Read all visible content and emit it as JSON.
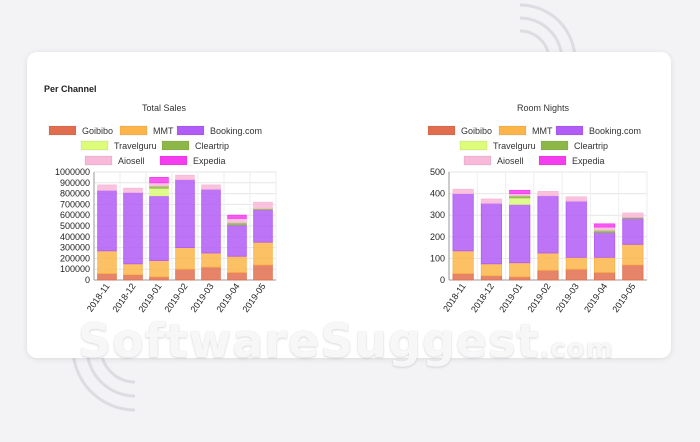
{
  "section": {
    "title": "Per Channel"
  },
  "watermark": {
    "main": "SoftwareSuggest",
    "suffix": ".com"
  },
  "legend": [
    {
      "name": "Goibibo",
      "color": "#e06e4e"
    },
    {
      "name": "MMT",
      "color": "#fbb54a"
    },
    {
      "name": "Booking.com",
      "color": "#b15cf6"
    },
    {
      "name": "Travelguru",
      "color": "#dcfc7a"
    },
    {
      "name": "Cleartrip",
      "color": "#8db848"
    },
    {
      "name": "Aiosell",
      "color": "#f8b8d8"
    },
    {
      "name": "Expedia",
      "color": "#f53df0"
    }
  ],
  "chart_data": [
    {
      "type": "bar",
      "stacked": true,
      "title": "Total Sales",
      "categories": [
        "2018-11",
        "2018-12",
        "2019-01",
        "2019-02",
        "2019-03",
        "2019-04",
        "2019-05"
      ],
      "ylim": [
        0,
        1000000
      ],
      "yticks": [
        0,
        100000,
        200000,
        300000,
        400000,
        500000,
        600000,
        700000,
        800000,
        900000,
        1000000
      ],
      "series": [
        {
          "name": "Goibibo",
          "values": [
            60000,
            50000,
            30000,
            100000,
            120000,
            70000,
            140000
          ]
        },
        {
          "name": "MMT",
          "values": [
            210000,
            100000,
            150000,
            200000,
            130000,
            150000,
            210000
          ]
        },
        {
          "name": "Booking.com",
          "values": [
            560000,
            660000,
            600000,
            630000,
            590000,
            290000,
            300000
          ]
        },
        {
          "name": "Travelguru",
          "values": [
            0,
            0,
            70000,
            0,
            0,
            0,
            0
          ]
        },
        {
          "name": "Cleartrip",
          "values": [
            0,
            0,
            20000,
            0,
            0,
            20000,
            10000
          ]
        },
        {
          "name": "Aiosell",
          "values": [
            50000,
            40000,
            30000,
            40000,
            40000,
            40000,
            60000
          ]
        },
        {
          "name": "Expedia",
          "values": [
            0,
            0,
            50000,
            0,
            0,
            30000,
            0
          ]
        }
      ]
    },
    {
      "type": "bar",
      "stacked": true,
      "title": "Room Nights",
      "categories": [
        "2018-11",
        "2018-12",
        "2019-01",
        "2019-02",
        "2019-03",
        "2019-04",
        "2019-05"
      ],
      "ylim": [
        0,
        500
      ],
      "yticks": [
        0,
        100,
        200,
        300,
        400,
        500
      ],
      "series": [
        {
          "name": "Goibibo",
          "values": [
            30,
            20,
            15,
            45,
            50,
            35,
            70
          ]
        },
        {
          "name": "MMT",
          "values": [
            105,
            55,
            65,
            80,
            55,
            70,
            95
          ]
        },
        {
          "name": "Booking.com",
          "values": [
            265,
            280,
            270,
            265,
            260,
            115,
            120
          ]
        },
        {
          "name": "Travelguru",
          "values": [
            0,
            0,
            30,
            0,
            0,
            0,
            0
          ]
        },
        {
          "name": "Cleartrip",
          "values": [
            0,
            0,
            10,
            0,
            0,
            10,
            5
          ]
        },
        {
          "name": "Aiosell",
          "values": [
            20,
            20,
            10,
            20,
            20,
            15,
            20
          ]
        },
        {
          "name": "Expedia",
          "values": [
            0,
            0,
            15,
            0,
            0,
            15,
            0
          ]
        }
      ]
    }
  ]
}
